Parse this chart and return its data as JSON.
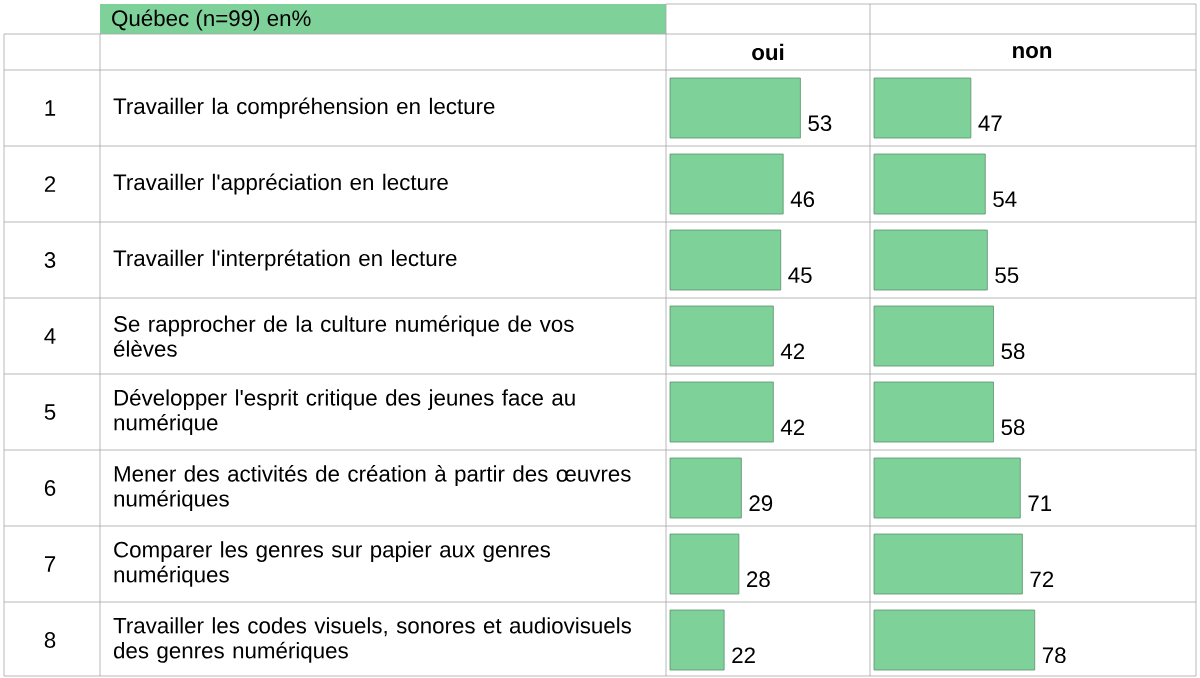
{
  "chart_data": [
    {
      "type": "bar",
      "orientation": "horizontal",
      "title": "oui",
      "categories": [
        "Travailler la compréhension en lecture",
        "Travailler l'appréciation en lecture",
        "Travailler l'interprétation en lecture",
        "Se rapprocher de la culture numérique de vos élèves",
        "Développer l'esprit critique des jeunes face au numérique",
        "Mener des activités de création à partir des œuvres numériques",
        "Comparer les genres sur papier aux genres numériques",
        "Travailler les codes visuels, sonores et audiovisuels des genres numériques"
      ],
      "series": [
        {
          "color": "#7fd19a",
          "values": [
            53,
            46,
            45,
            42,
            42,
            29,
            28,
            22
          ]
        }
      ],
      "data_labels": true,
      "tick_labels": "y",
      "annotations": [
        "Québec (n=99) en%",
        "1",
        "2",
        "3",
        "4",
        "5",
        "6",
        "7",
        "8"
      ]
    },
    {
      "type": "bar",
      "orientation": "horizontal",
      "title": "non",
      "categories": [
        null,
        null,
        null,
        null,
        null,
        null,
        null,
        null
      ],
      "series": [
        {
          "color": "#7fd19a",
          "values": [
            47,
            54,
            55,
            58,
            58,
            71,
            72,
            78
          ]
        }
      ],
      "data_labels": true,
      "tick_labels": false
    }
  ]
}
